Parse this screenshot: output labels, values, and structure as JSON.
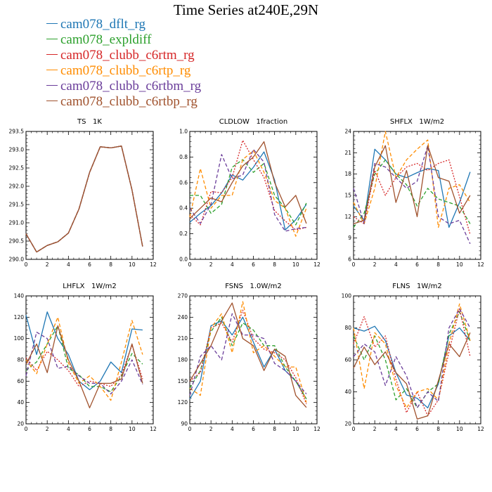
{
  "page": {
    "title": "Time Series at240E,29N"
  },
  "legend": [
    {
      "label": "cam078_dflt_rg",
      "color": "#1f77b4"
    },
    {
      "label": "cam078_expldiff",
      "color": "#2ca02c"
    },
    {
      "label": "cam078_clubb_c6rtm_rg",
      "color": "#d62728"
    },
    {
      "label": "cam078_clubb_c6rtp_rg",
      "color": "#ff8c00"
    },
    {
      "label": "cam078_clubb_c6rtbm_rg",
      "color": "#6a3d9a"
    },
    {
      "label": "cam078_clubb_c6rtbp_rg",
      "color": "#a0522d"
    }
  ],
  "chart_data": [
    {
      "type": "line",
      "title": "TS   1K",
      "xlim": [
        0,
        12
      ],
      "ylim": [
        290.0,
        293.5
      ],
      "xticks": [
        "0",
        "2",
        "4",
        "6",
        "8",
        "10",
        "12"
      ],
      "yticks": [
        "290.0",
        "290.5",
        "291.0",
        "291.5",
        "292.0",
        "292.5",
        "293.0",
        "293.5"
      ],
      "x": [
        0,
        1,
        2,
        3,
        4,
        5,
        6,
        7,
        8,
        9,
        10,
        11
      ],
      "series": [
        {
          "values": [
            290.7,
            290.2,
            290.38,
            290.48,
            290.72,
            291.38,
            292.38,
            293.08,
            293.05,
            293.1,
            291.9,
            290.35
          ]
        },
        {
          "values": [
            290.7,
            290.2,
            290.38,
            290.48,
            290.72,
            291.38,
            292.38,
            293.08,
            293.05,
            293.1,
            291.9,
            290.35
          ]
        },
        {
          "values": [
            290.7,
            290.2,
            290.38,
            290.48,
            290.72,
            291.38,
            292.38,
            293.08,
            293.05,
            293.1,
            291.9,
            290.35
          ]
        },
        {
          "values": [
            290.7,
            290.2,
            290.38,
            290.48,
            290.72,
            291.38,
            292.38,
            293.08,
            293.05,
            293.1,
            291.9,
            290.35
          ]
        },
        {
          "values": [
            290.7,
            290.2,
            290.38,
            290.48,
            290.72,
            291.38,
            292.38,
            293.08,
            293.05,
            293.1,
            291.9,
            290.35
          ]
        },
        {
          "values": [
            290.7,
            290.2,
            290.38,
            290.48,
            290.72,
            291.38,
            292.38,
            293.08,
            293.05,
            293.1,
            291.9,
            290.35
          ]
        }
      ]
    },
    {
      "type": "line",
      "title": "CLDLOW   1fraction",
      "xlim": [
        0,
        12
      ],
      "ylim": [
        0.0,
        1.0
      ],
      "xticks": [
        "0",
        "2",
        "4",
        "6",
        "8",
        "10",
        "12"
      ],
      "yticks": [
        "0.0",
        "0.2",
        "0.4",
        "0.6",
        "0.8",
        "1.0"
      ],
      "x": [
        0,
        1,
        2,
        3,
        4,
        5,
        6,
        7,
        8,
        9,
        10,
        11
      ],
      "series": [
        {
          "values": [
            0.29,
            0.36,
            0.42,
            0.52,
            0.66,
            0.62,
            0.72,
            0.84,
            0.62,
            0.23,
            0.31,
            0.43
          ]
        },
        {
          "values": [
            0.5,
            0.5,
            0.36,
            0.43,
            0.72,
            0.78,
            0.68,
            0.75,
            0.5,
            0.4,
            0.27,
            0.44
          ]
        },
        {
          "values": [
            0.35,
            0.27,
            0.53,
            0.52,
            0.64,
            0.93,
            0.78,
            0.64,
            0.38,
            0.3,
            0.23,
            0.25
          ]
        },
        {
          "values": [
            0.33,
            0.71,
            0.4,
            0.5,
            0.5,
            0.78,
            0.85,
            0.68,
            0.46,
            0.4,
            0.18,
            0.4
          ]
        },
        {
          "values": [
            0.4,
            0.28,
            0.43,
            0.82,
            0.63,
            0.66,
            0.86,
            0.76,
            0.35,
            0.22,
            0.24,
            0.25
          ]
        },
        {
          "values": [
            0.32,
            0.4,
            0.48,
            0.45,
            0.6,
            0.73,
            0.8,
            0.92,
            0.6,
            0.41,
            0.5,
            0.28
          ]
        }
      ]
    },
    {
      "type": "line",
      "title": "SHFLX   1W/m2",
      "xlim": [
        0,
        12
      ],
      "ylim": [
        6,
        24
      ],
      "xticks": [
        "0",
        "2",
        "4",
        "6",
        "8",
        "10",
        "12"
      ],
      "yticks": [
        "6",
        "9",
        "12",
        "15",
        "18",
        "21",
        "24"
      ],
      "x": [
        0,
        1,
        2,
        3,
        4,
        5,
        6,
        7,
        8,
        9,
        10,
        11
      ],
      "series": [
        {
          "values": [
            13.5,
            11.5,
            21.5,
            20.0,
            18.0,
            17.5,
            18.2,
            18.8,
            18.5,
            10.5,
            14.0,
            18.3
          ]
        },
        {
          "values": [
            10.5,
            12.5,
            18.0,
            20.0,
            18.0,
            16.5,
            13.5,
            16.0,
            14.5,
            14.0,
            13.5,
            11.0
          ]
        },
        {
          "values": [
            12.0,
            11.0,
            18.5,
            15.0,
            17.5,
            19.0,
            19.5,
            18.5,
            19.5,
            20.0,
            14.8,
            9.5
          ]
        },
        {
          "values": [
            14.0,
            11.0,
            16.0,
            24.0,
            17.5,
            20.0,
            21.5,
            22.8,
            10.5,
            16.0,
            16.5,
            14.0
          ]
        },
        {
          "values": [
            16.0,
            11.0,
            19.5,
            19.0,
            17.5,
            16.0,
            17.0,
            22.0,
            12.0,
            11.0,
            11.5,
            8.2
          ]
        },
        {
          "values": [
            11.0,
            11.5,
            19.0,
            22.0,
            14.0,
            18.5,
            12.0,
            22.0,
            17.5,
            17.0,
            12.5,
            15.0
          ]
        }
      ]
    },
    {
      "type": "line",
      "title": "LHFLX   1W/m2",
      "xlim": [
        0,
        12
      ],
      "ylim": [
        20,
        140
      ],
      "xticks": [
        "0",
        "2",
        "4",
        "6",
        "8",
        "10",
        "12"
      ],
      "yticks": [
        "20",
        "40",
        "60",
        "80",
        "100",
        "120",
        "140"
      ],
      "x": [
        0,
        1,
        2,
        3,
        4,
        5,
        6,
        7,
        8,
        9,
        10,
        11
      ],
      "series": [
        {
          "values": [
            122,
            85,
            125,
            100,
            85,
            60,
            52,
            60,
            78,
            68,
            109,
            108
          ]
        },
        {
          "values": [
            70,
            78,
            95,
            112,
            72,
            66,
            55,
            55,
            50,
            65,
            86,
            76
          ]
        },
        {
          "values": [
            82,
            70,
            88,
            80,
            70,
            55,
            60,
            58,
            55,
            66,
            94,
            62
          ]
        },
        {
          "values": [
            80,
            67,
            95,
            120,
            77,
            58,
            65,
            55,
            42,
            78,
            117,
            85
          ]
        },
        {
          "values": [
            65,
            106,
            100,
            72,
            74,
            65,
            58,
            58,
            48,
            60,
            80,
            57
          ]
        },
        {
          "values": [
            76,
            95,
            68,
            112,
            80,
            60,
            35,
            58,
            58,
            62,
            95,
            58
          ]
        }
      ]
    },
    {
      "type": "line",
      "title": "FSNS   1.0W/m2",
      "xlim": [
        0,
        12
      ],
      "ylim": [
        90,
        270
      ],
      "xticks": [
        "0",
        "2",
        "4",
        "6",
        "8",
        "10",
        "12"
      ],
      "yticks": [
        "90",
        "120",
        "150",
        "180",
        "210",
        "240",
        "270"
      ],
      "x": [
        0,
        1,
        2,
        3,
        4,
        5,
        6,
        7,
        8,
        9,
        10,
        11
      ],
      "series": [
        {
          "values": [
            125,
            150,
            228,
            235,
            215,
            240,
            205,
            170,
            195,
            165,
            150,
            125
          ]
        },
        {
          "values": [
            140,
            165,
            220,
            240,
            200,
            232,
            222,
            200,
            200,
            170,
            150,
            125
          ]
        },
        {
          "values": [
            150,
            162,
            225,
            232,
            205,
            250,
            210,
            195,
            190,
            180,
            155,
            118
          ]
        },
        {
          "values": [
            140,
            130,
            225,
            245,
            190,
            262,
            190,
            200,
            185,
            170,
            170,
            120
          ]
        },
        {
          "values": [
            130,
            185,
            200,
            180,
            245,
            215,
            215,
            210,
            175,
            165,
            150,
            132
          ]
        },
        {
          "values": [
            150,
            175,
            200,
            235,
            260,
            210,
            200,
            165,
            195,
            185,
            130,
            113
          ]
        }
      ]
    },
    {
      "type": "line",
      "title": "FLNS   1W/m2",
      "xlim": [
        0,
        12
      ],
      "ylim": [
        20,
        100
      ],
      "xticks": [
        "0",
        "2",
        "4",
        "6",
        "8",
        "10",
        "12"
      ],
      "yticks": [
        "20",
        "40",
        "60",
        "80",
        "100"
      ],
      "x": [
        0,
        1,
        2,
        3,
        4,
        5,
        6,
        7,
        8,
        9,
        10,
        11
      ],
      "series": [
        {
          "values": [
            80,
            78,
            81,
            72,
            52,
            38,
            36,
            30,
            45,
            75,
            80,
            72
          ]
        },
        {
          "values": [
            75,
            60,
            75,
            60,
            35,
            42,
            30,
            40,
            45,
            76,
            90,
            72
          ]
        },
        {
          "values": [
            70,
            87,
            68,
            75,
            48,
            27,
            40,
            25,
            35,
            65,
            92,
            62
          ]
        },
        {
          "values": [
            80,
            42,
            77,
            70,
            44,
            30,
            40,
            42,
            35,
            70,
            95,
            72
          ]
        },
        {
          "values": [
            62,
            70,
            65,
            44,
            62,
            50,
            30,
            40,
            34,
            80,
            92,
            80
          ]
        },
        {
          "values": [
            55,
            68,
            57,
            65,
            52,
            45,
            23,
            25,
            47,
            70,
            62,
            77
          ]
        }
      ]
    }
  ]
}
